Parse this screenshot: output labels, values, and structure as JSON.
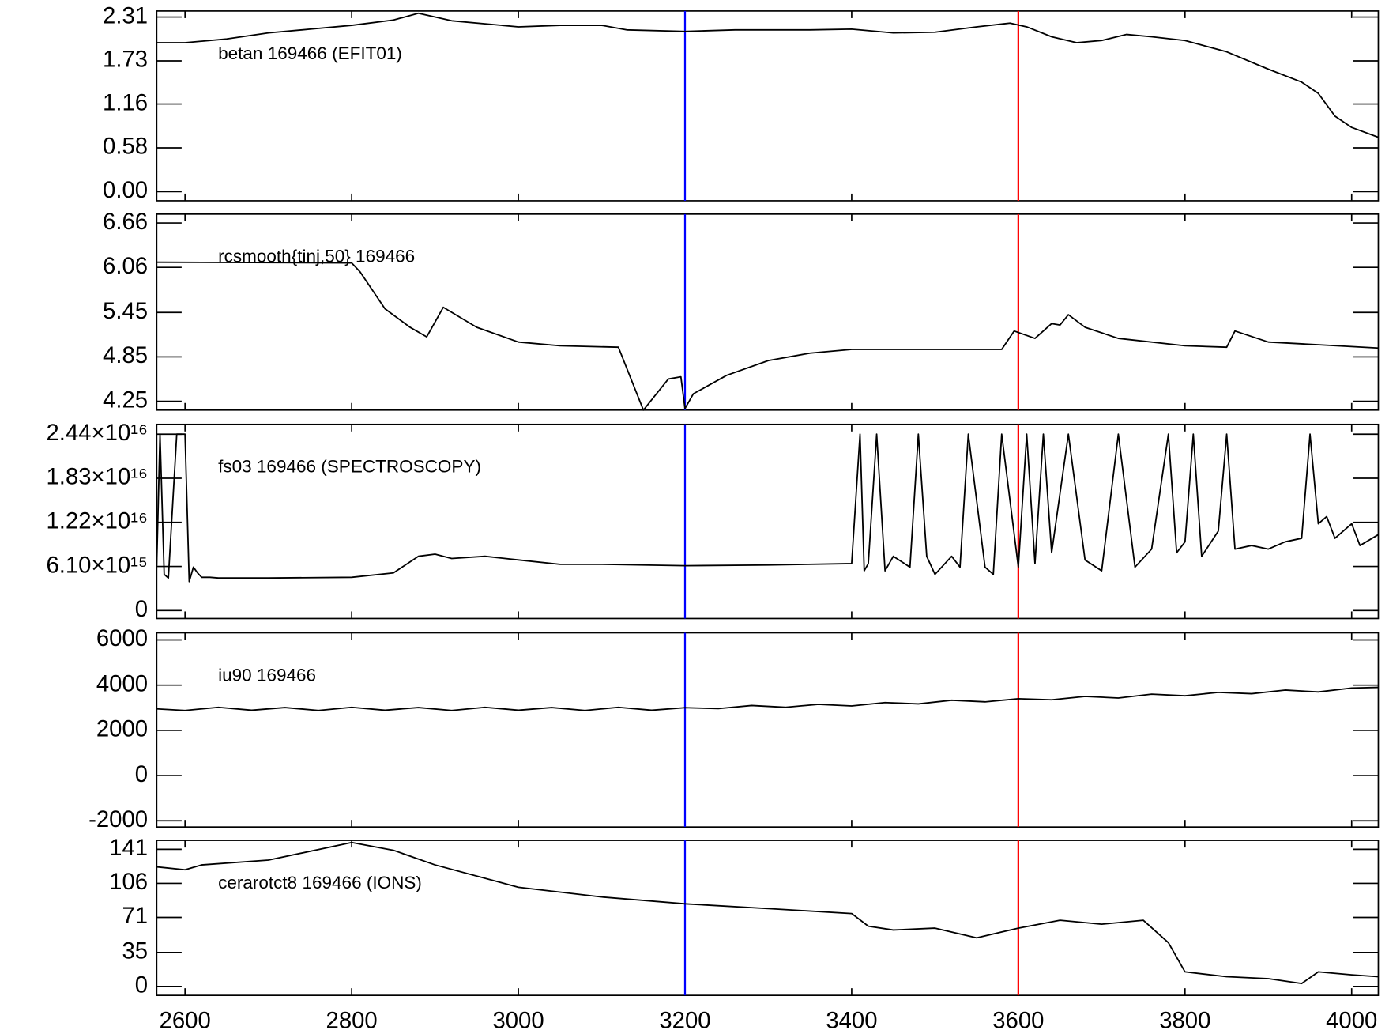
{
  "cursors": [
    {
      "x": 3200,
      "color": "#0000ff"
    },
    {
      "x": 3600,
      "color": "#ff0000"
    }
  ],
  "chart_data": [
    {
      "type": "line",
      "label": "betan  169466 (EFIT01)",
      "color": "#000000",
      "x": [
        2566,
        2600,
        2650,
        2700,
        2750,
        2800,
        2850,
        2880,
        2920,
        2960,
        3000,
        3050,
        3100,
        3130,
        3200,
        3260,
        3300,
        3350,
        3400,
        3450,
        3500,
        3550,
        3590,
        3610,
        3640,
        3670,
        3700,
        3730,
        3760,
        3800,
        3850,
        3900,
        3940,
        3960,
        3980,
        4000,
        4032
      ],
      "values": [
        1.97,
        1.97,
        2.02,
        2.1,
        2.15,
        2.2,
        2.27,
        2.36,
        2.26,
        2.22,
        2.18,
        2.2,
        2.2,
        2.14,
        2.12,
        2.14,
        2.14,
        2.14,
        2.15,
        2.1,
        2.11,
        2.18,
        2.23,
        2.18,
        2.05,
        1.97,
        2.0,
        2.08,
        2.05,
        2.0,
        1.85,
        1.62,
        1.45,
        1.3,
        1.0,
        0.85,
        0.72
      ],
      "ylim": [
        -0.12,
        2.39
      ],
      "yticks": [
        {
          "value": 0,
          "label": "0.00"
        },
        0.58,
        1.16,
        1.73,
        2.31
      ]
    },
    {
      "type": "line",
      "label": "rcsmooth{tinj,50}  169466",
      "color": "#000000",
      "x": [
        2566,
        2800,
        2810,
        2840,
        2870,
        2890,
        2910,
        2950,
        3000,
        3050,
        3120,
        3150,
        3180,
        3195,
        3200,
        3210,
        3250,
        3300,
        3350,
        3400,
        3500,
        3580,
        3595,
        3620,
        3640,
        3650,
        3660,
        3680,
        3720,
        3800,
        3850,
        3860,
        3900,
        4032
      ],
      "values": [
        6.13,
        6.12,
        6.0,
        5.5,
        5.25,
        5.12,
        5.52,
        5.25,
        5.05,
        5.0,
        4.98,
        4.13,
        4.55,
        4.58,
        4.15,
        4.35,
        4.6,
        4.8,
        4.9,
        4.95,
        4.95,
        4.95,
        5.2,
        5.1,
        5.3,
        5.28,
        5.42,
        5.25,
        5.1,
        5.0,
        4.98,
        5.2,
        5.05,
        4.97
      ],
      "ylim": [
        4.13,
        6.78
      ],
      "yticks": [
        4.25,
        4.85,
        5.45,
        6.06,
        6.66
      ]
    },
    {
      "type": "line",
      "label": "fs03  169466 (SPECTROSCOPY)",
      "color": "#000000",
      "x": [
        2566,
        2570,
        2575,
        2580,
        2590,
        2600,
        2605,
        2610,
        2615,
        2620,
        2630,
        2640,
        2700,
        2800,
        2850,
        2880,
        2900,
        2920,
        2960,
        3000,
        3050,
        3100,
        3200,
        3300,
        3400,
        3410,
        3415,
        3420,
        3430,
        3440,
        3450,
        3470,
        3480,
        3490,
        3500,
        3520,
        3530,
        3540,
        3560,
        3570,
        3580,
        3600,
        3610,
        3620,
        3630,
        3640,
        3660,
        3680,
        3700,
        3720,
        3740,
        3760,
        3780,
        3790,
        3800,
        3810,
        3820,
        3840,
        3850,
        3860,
        3880,
        3900,
        3920,
        3940,
        3950,
        3960,
        3970,
        3980,
        4000,
        4010,
        4032
      ],
      "values": [
        6200000000000000.0,
        2.44e+16,
        5000000000000000.0,
        4500000000000000.0,
        2.44e+16,
        2.44e+16,
        4000000000000000.0,
        6000000000000000.0,
        5200000000000000.0,
        4600000000000000.0,
        4600000000000000.0,
        4500000000000000.0,
        4500000000000000.0,
        4600000000000000.0,
        5200000000000000.0,
        7500000000000000.0,
        7800000000000000.0,
        7200000000000000.0,
        7500000000000000.0,
        7000000000000000.0,
        6400000000000000.0,
        6400000000000000.0,
        6200000000000000.0,
        6300000000000000.0,
        6500000000000000.0,
        2.44e+16,
        5500000000000000.0,
        6500000000000000.0,
        2.44e+16,
        5500000000000000.0,
        7500000000000000.0,
        6000000000000000.0,
        2.44e+16,
        7500000000000000.0,
        5000000000000000.0,
        7500000000000000.0,
        6000000000000000.0,
        2.44e+16,
        6000000000000000.0,
        5000000000000000.0,
        2.44e+16,
        6000000000000000.0,
        2.44e+16,
        6500000000000000.0,
        2.44e+16,
        8000000000000000.0,
        2.44e+16,
        7000000000000000.0,
        5500000000000000.0,
        2.44e+16,
        6000000000000000.0,
        8500000000000000.0,
        2.44e+16,
        8000000000000000.0,
        9500000000000000.0,
        2.44e+16,
        7500000000000000.0,
        1.1e+16,
        2.44e+16,
        8500000000000000.0,
        9000000000000000.0,
        8500000000000000.0,
        9500000000000000.0,
        1e+16,
        2.44e+16,
        1.2e+16,
        1.3e+16,
        1e+16,
        1.2e+16,
        9000000000000000.0,
        1.05e+16
      ],
      "ylim": [
        -1110000000000000.0,
        2.576e+16
      ],
      "yticks": [
        0,
        {
          "value": 6100000000000000.0,
          "label": "6.10×10¹⁵"
        },
        {
          "value": 1.22e+16,
          "label": "1.22×10¹⁶"
        },
        {
          "value": 1.83e+16,
          "label": "1.83×10¹⁶"
        },
        {
          "value": 2.44e+16,
          "label": "2.44×10¹⁶"
        }
      ]
    },
    {
      "type": "line",
      "label": "iu90  169466",
      "color": "#000000",
      "x": [
        2566,
        2600,
        2640,
        2680,
        2720,
        2760,
        2800,
        2840,
        2880,
        2920,
        2960,
        3000,
        3040,
        3080,
        3120,
        3160,
        3200,
        3240,
        3280,
        3320,
        3360,
        3400,
        3440,
        3480,
        3520,
        3560,
        3600,
        3640,
        3680,
        3720,
        3760,
        3800,
        3840,
        3880,
        3920,
        3960,
        4000,
        4032
      ],
      "values": [
        2950,
        2880,
        3020,
        2890,
        3010,
        2880,
        3020,
        2890,
        3010,
        2880,
        3020,
        2890,
        3010,
        2880,
        3020,
        2890,
        3000,
        2960,
        3100,
        3020,
        3150,
        3080,
        3230,
        3170,
        3330,
        3260,
        3400,
        3350,
        3500,
        3430,
        3600,
        3530,
        3680,
        3620,
        3780,
        3700,
        3870,
        3900
      ],
      "ylim": [
        -2276,
        6315
      ],
      "yticks": [
        -2000,
        0,
        2000,
        4000,
        6000
      ]
    },
    {
      "type": "line",
      "label": "cerarotct8  169466 (IONS)",
      "color": "#000000",
      "x": [
        2566,
        2600,
        2620,
        2700,
        2800,
        2850,
        2900,
        3000,
        3100,
        3200,
        3300,
        3400,
        3420,
        3450,
        3500,
        3550,
        3600,
        3650,
        3700,
        3750,
        3780,
        3800,
        3850,
        3900,
        3940,
        3960,
        4000,
        4032
      ],
      "values": [
        123,
        120,
        125,
        130,
        148,
        140,
        125,
        102,
        92,
        85,
        80,
        75,
        62,
        58,
        60,
        50,
        60,
        68,
        64,
        68,
        45,
        15,
        10,
        8,
        3,
        15,
        12,
        10
      ],
      "ylim": [
        -9.2,
        150.2
      ],
      "yticks": [
        0,
        35,
        71,
        106,
        141
      ],
      "xlim": [
        2566,
        4032
      ],
      "xticks": [
        2600,
        2800,
        3000,
        3200,
        3400,
        3600,
        3800,
        4000
      ]
    }
  ]
}
